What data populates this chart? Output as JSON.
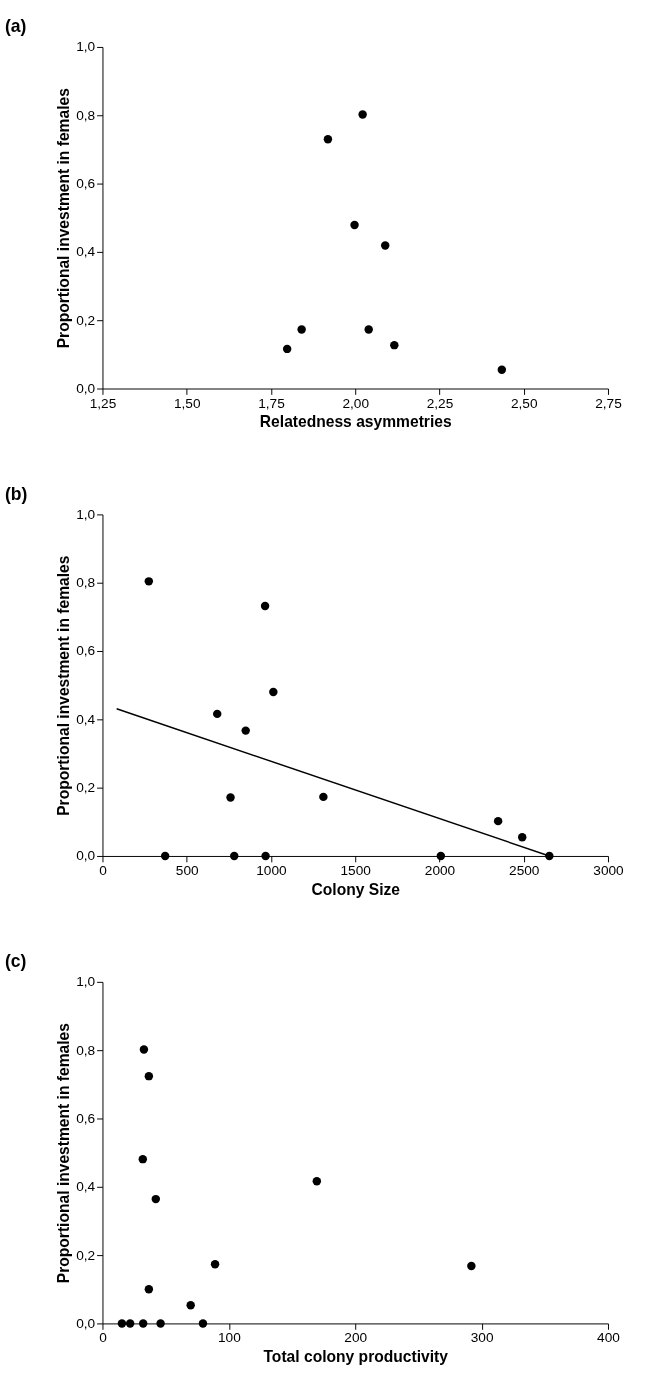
{
  "chart_data": [
    {
      "type": "scatter",
      "title": "(a)",
      "xlabel": "Relatedness asymmetries",
      "ylabel": "Proportional investment in females",
      "marker": "circle",
      "xlim": [
        1.25,
        2.75
      ],
      "xticks": [
        {
          "value": 1.25,
          "label": "1,25"
        },
        {
          "value": 1.5,
          "label": "1,50"
        },
        {
          "value": 1.75,
          "label": "1,75"
        },
        {
          "value": 2.0,
          "label": "2,00"
        },
        {
          "value": 2.25,
          "label": "2,25"
        },
        {
          "value": 2.5,
          "label": "2,50"
        },
        {
          "value": 2.75,
          "label": "2,75"
        }
      ],
      "ylim": [
        0,
        1
      ],
      "yticks": [
        {
          "value": 0,
          "label": "0,0"
        },
        {
          "value": 0.2,
          "label": "0,2"
        },
        {
          "value": 0.4,
          "label": "0,4"
        },
        {
          "value": 0.6,
          "label": "0,6"
        },
        {
          "value": 0.8,
          "label": "0,8"
        },
        {
          "value": 1,
          "label": "1,0"
        }
      ],
      "series": [
        {
          "color": "#000000",
          "x": [
            1.798,
            1.841,
            1.919,
            1.998,
            2.022,
            2.04,
            2.089,
            2.116,
            2.435
          ],
          "values": [
            0.116,
            0.173,
            0.73,
            0.479,
            0.802,
            0.173,
            0.419,
            0.127,
            0.055
          ]
        }
      ]
    },
    {
      "type": "scatter",
      "title": "(b)",
      "xlabel": "Colony Size",
      "ylabel": "Proportional investment in females",
      "marker": "circle",
      "xlim": [
        0,
        3000
      ],
      "xticks": [
        0,
        500,
        1000,
        1500,
        2000,
        2500,
        3000
      ],
      "ylim": [
        0,
        1
      ],
      "yticks": [
        {
          "value": 0,
          "label": "0,0"
        },
        {
          "value": 0.2,
          "label": "0,2"
        },
        {
          "value": 0.4,
          "label": "0,4"
        },
        {
          "value": 0.6,
          "label": "0,6"
        },
        {
          "value": 0.8,
          "label": "0,8"
        },
        {
          "value": 1,
          "label": "1,0"
        }
      ],
      "series": [
        {
          "color": "#000000",
          "x": [
            275,
            372,
            681,
            760,
            782,
            850,
            965,
            968,
            1014,
            1311,
            2008,
            2348,
            2491,
            2652
          ],
          "values": [
            0.804,
            0,
            0.416,
            0.171,
            0,
            0.367,
            0.732,
            0,
            0.48,
            0.173,
            0,
            0.102,
            0.055,
            0
          ]
        },
        {
          "type": "line",
          "color": "#000000",
          "marker": "none",
          "line_style": "solid",
          "x": [
            84,
            2652
          ],
          "values": [
            0.431,
            0
          ]
        }
      ]
    },
    {
      "type": "scatter",
      "title": "(c)",
      "xlabel": "Total colony productivity",
      "ylabel": "Proportional investment in females",
      "marker": "circle",
      "xlim": [
        0,
        400
      ],
      "xticks": [
        0,
        100,
        200,
        300,
        400
      ],
      "ylim": [
        0,
        1
      ],
      "yticks": [
        {
          "value": 0,
          "label": "0,0"
        },
        {
          "value": 0.2,
          "label": "0,2"
        },
        {
          "value": 0.4,
          "label": "0,4"
        },
        {
          "value": 0.6,
          "label": "0,6"
        },
        {
          "value": 0.8,
          "label": "0,8"
        },
        {
          "value": 1,
          "label": "1,0"
        }
      ],
      "series": [
        {
          "color": "#000000",
          "x": [
            32.8,
            36.7,
            31.9,
            42.2,
            169.6,
            89.1,
            291.9,
            36.7,
            69.8,
            15.4,
            21.9,
            32.2,
            46.0,
            79.5
          ],
          "values": [
            0.802,
            0.724,
            0.481,
            0.364,
            0.416,
            0.173,
            0.168,
            0.1,
            0.053,
            0,
            0,
            0,
            0,
            0
          ]
        }
      ]
    }
  ]
}
